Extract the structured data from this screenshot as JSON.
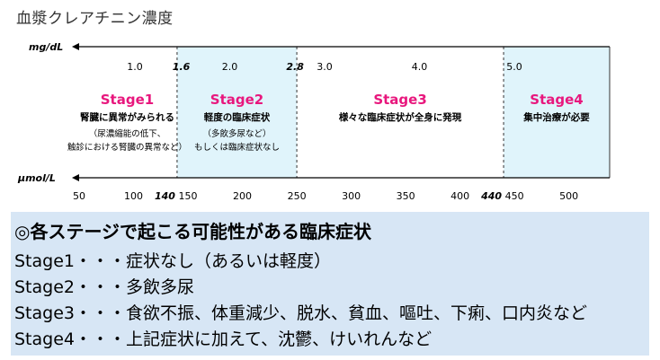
{
  "title": "血漿クレアチニン濃度",
  "axis_top": {
    "unit": "mg/dL",
    "ticks": [
      {
        "value": 1.0,
        "label": "1.0",
        "emphasis": false
      },
      {
        "value": 1.6,
        "label": "1.6",
        "emphasis": true
      },
      {
        "value": 2.0,
        "label": "2.0",
        "emphasis": false
      },
      {
        "value": 2.8,
        "label": "2.8",
        "emphasis": true
      },
      {
        "value": 3.0,
        "label": "3.0",
        "emphasis": false
      },
      {
        "value": 4.0,
        "label": "4.0",
        "emphasis": false
      },
      {
        "value": 5.0,
        "label": "5.0",
        "emphasis": false
      }
    ]
  },
  "axis_bottom": {
    "unit": "μmol/L",
    "ticks": [
      {
        "value": 50,
        "label": "50",
        "emphasis": false
      },
      {
        "value": 100,
        "label": "100",
        "emphasis": false
      },
      {
        "value": 140,
        "label": "140",
        "emphasis": true
      },
      {
        "value": 150,
        "label": "150",
        "emphasis": false
      },
      {
        "value": 200,
        "label": "200",
        "emphasis": false
      },
      {
        "value": 250,
        "label": "250",
        "emphasis": false
      },
      {
        "value": 300,
        "label": "300",
        "emphasis": false
      },
      {
        "value": 350,
        "label": "350",
        "emphasis": false
      },
      {
        "value": 400,
        "label": "400",
        "emphasis": false
      },
      {
        "value": 440,
        "label": "440",
        "emphasis": true
      },
      {
        "value": 450,
        "label": "450",
        "emphasis": false
      },
      {
        "value": 500,
        "label": "500",
        "emphasis": false
      }
    ]
  },
  "stages": [
    {
      "name": "Stage1",
      "range_umol": [
        null,
        140
      ],
      "shaded": false,
      "subtitle": "腎臓に異常がみられる",
      "notes": [
        "（尿濃縮能の低下、",
        "触診における腎臓の異常など）"
      ]
    },
    {
      "name": "Stage2",
      "range_umol": [
        140,
        250
      ],
      "shaded": true,
      "subtitle": "軽度の臨床症状",
      "notes": [
        "（多飲多尿など）",
        "もしくは臨床症状なし"
      ]
    },
    {
      "name": "Stage3",
      "range_umol": [
        250,
        440
      ],
      "shaded": false,
      "subtitle": "様々な臨床症状が全身に発現",
      "notes": []
    },
    {
      "name": "Stage4",
      "range_umol": [
        440,
        null
      ],
      "shaded": true,
      "subtitle": "集中治療が必要",
      "notes": []
    }
  ],
  "colors": {
    "stage_label": "#e8177d",
    "shade": "#e0f4fb",
    "panel": "#d7e6f5",
    "divider": "#333333"
  },
  "symptoms": {
    "heading": "◎各ステージで起こる可能性がある臨床症状",
    "lines": [
      "Stage1・・・症状なし（あるいは軽度）",
      "Stage2・・・多飲多尿",
      "Stage3・・・食欲不振、体重減少、脱水、貧血、嘔吐、下痢、口内炎など",
      "Stage4・・・上記症状に加えて、沈鬱、けいれんなど"
    ]
  }
}
